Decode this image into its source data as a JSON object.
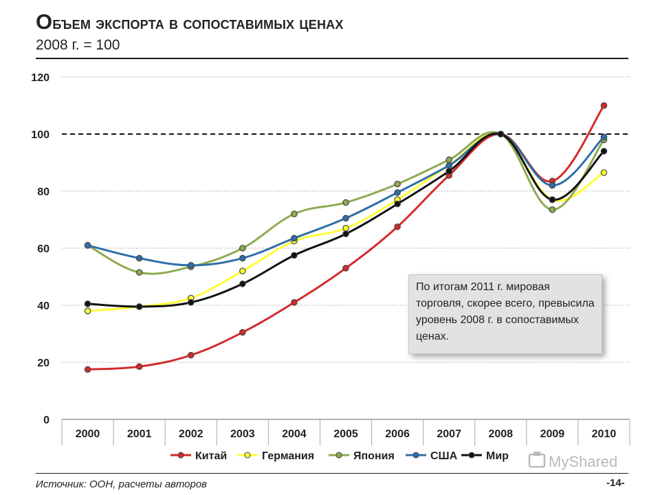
{
  "header": {
    "title_first": "О",
    "title_rest": "бъем экспорта в сопоставимых ценах",
    "subtitle": "2008 г. = 100"
  },
  "callout": {
    "text": "По итогам 2011 г. мировая торговля, скорее всего, превысила уровень 2008 г. в сопоставимых ценах."
  },
  "footer": {
    "source": "Источник: ООН, расчеты авторов",
    "page_number": "-14-"
  },
  "watermark": {
    "text": "MyShared"
  },
  "chart_data": {
    "type": "line",
    "categories": [
      "2000",
      "2001",
      "2002",
      "2003",
      "2004",
      "2005",
      "2006",
      "2007",
      "2008",
      "2009",
      "2010"
    ],
    "ylim": [
      0,
      120
    ],
    "yticks": [
      "0",
      "20",
      "40",
      "60",
      "80",
      "100",
      "120"
    ],
    "reference_line": 100,
    "grid": true,
    "legend_position": "bottom",
    "series": [
      {
        "name": "Китай",
        "color": "#d42a2a",
        "values": [
          17.5,
          18.5,
          22.5,
          30.5,
          41,
          53,
          67.5,
          85.5,
          100,
          83.5,
          110
        ]
      },
      {
        "name": "Германия",
        "color": "#ffff33",
        "values": [
          38,
          39.5,
          42.5,
          52,
          62.5,
          67,
          77,
          89,
          100,
          77,
          86.5
        ]
      },
      {
        "name": "Япония",
        "color": "#8eaa50",
        "values": [
          61,
          51.5,
          53.5,
          60,
          72,
          76,
          82.5,
          91,
          100,
          73.5,
          98
        ]
      },
      {
        "name": "США",
        "color": "#2e6fa8",
        "values": [
          61,
          56.5,
          54,
          56.5,
          63.5,
          70.5,
          79.5,
          89,
          100,
          82,
          99
        ]
      },
      {
        "name": "Мир",
        "color": "#111111",
        "values": [
          40.5,
          39.5,
          41,
          47.5,
          57.5,
          65,
          75.5,
          87,
          100,
          77,
          94
        ]
      }
    ]
  }
}
